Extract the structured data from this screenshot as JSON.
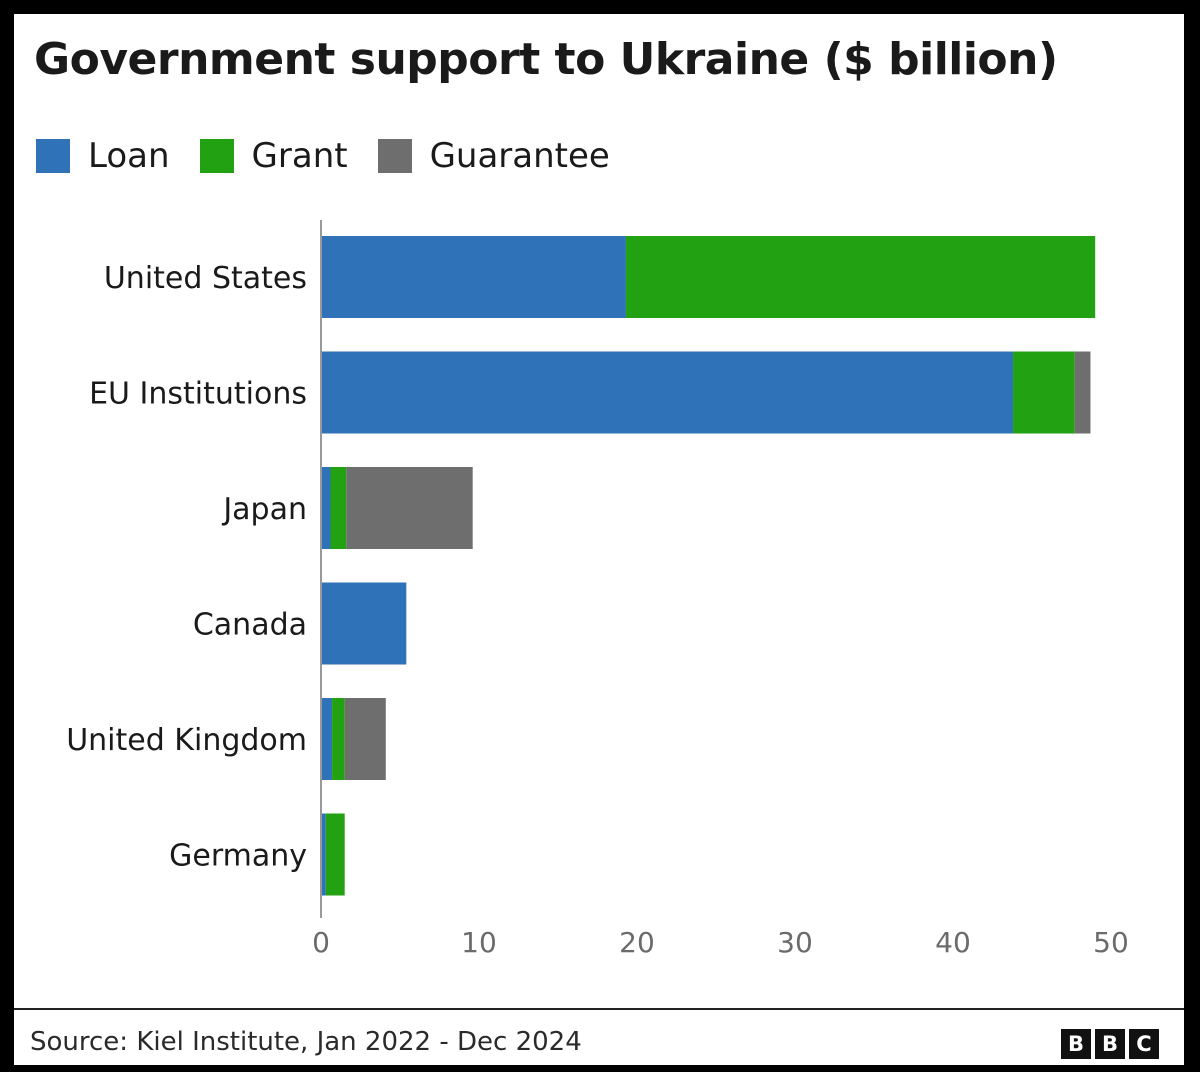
{
  "chart_data": {
    "type": "bar",
    "orientation": "horizontal",
    "stacked": true,
    "title": "Government support to Ukraine ($ billion)",
    "categories": [
      "United States",
      "EU Institutions",
      "Japan",
      "Canada",
      "United Kingdom",
      "Germany"
    ],
    "series": [
      {
        "name": "Loan",
        "color": "#2f72b7",
        "values": [
          19.3,
          43.8,
          0.6,
          5.4,
          0.7,
          0.3
        ]
      },
      {
        "name": "Grant",
        "color": "#22a213",
        "values": [
          29.7,
          3.9,
          1.0,
          0.0,
          0.8,
          1.2
        ]
      },
      {
        "name": "Guarantee",
        "color": "#6e6e6e",
        "values": [
          0.0,
          1.0,
          8.0,
          0.0,
          2.6,
          0.0
        ]
      }
    ],
    "xlim": [
      0,
      50
    ],
    "xticks": [
      0,
      10,
      20,
      30,
      40,
      50
    ],
    "xlabel": "",
    "ylabel": "",
    "grid": false,
    "legend": "top-left"
  },
  "footer": {
    "source": "Source: Kiel Institute, Jan 2022 - Dec 2024",
    "logo_letters": [
      "B",
      "B",
      "C"
    ]
  }
}
